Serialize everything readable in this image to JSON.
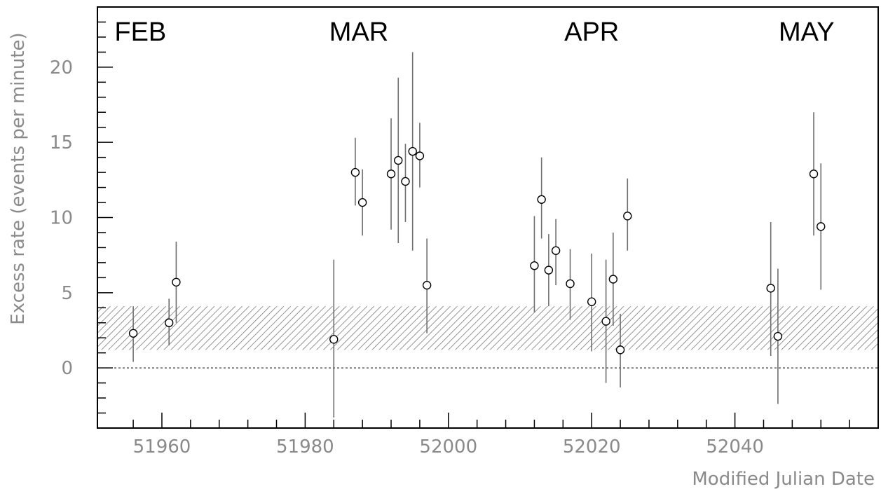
{
  "chart_data": {
    "type": "scatter",
    "title": "",
    "xlabel": "Modified Julian Date",
    "ylabel": "Excess rate (events per minute)",
    "xlim": [
      51951,
      52060
    ],
    "ylim": [
      -4,
      24
    ],
    "x_ticks": [
      51960,
      51980,
      52000,
      52020,
      52040
    ],
    "x_tick_labels": [
      "51960",
      "51980",
      "52000",
      "52020",
      "52040"
    ],
    "y_ticks": [
      0,
      5,
      10,
      15,
      20
    ],
    "y_tick_labels": [
      "0",
      "5",
      "10",
      "15",
      "20"
    ],
    "month_labels": [
      {
        "text": "FEB",
        "x": 51957
      },
      {
        "text": "MAR",
        "x": 51987.5
      },
      {
        "text": "APR",
        "x": 52020
      },
      {
        "text": "MAY",
        "x": 52050
      }
    ],
    "band": {
      "low": 1.2,
      "high": 4.1,
      "style": "hatched"
    },
    "reference_line": {
      "y": 0,
      "style": "dotted"
    },
    "grid": false,
    "points": [
      {
        "x": 51956.0,
        "y": 2.3,
        "err_low": 0.4,
        "err_high": 4.1
      },
      {
        "x": 51961.0,
        "y": 3.0,
        "err_low": 1.5,
        "err_high": 4.6
      },
      {
        "x": 51962.0,
        "y": 5.7,
        "err_low": 3.0,
        "err_high": 8.4
      },
      {
        "x": 51984.0,
        "y": 1.9,
        "err_low": -3.3,
        "err_high": 7.2
      },
      {
        "x": 51987.0,
        "y": 13.0,
        "err_low": 10.8,
        "err_high": 15.3
      },
      {
        "x": 51988.0,
        "y": 11.0,
        "err_low": 8.8,
        "err_high": 13.2
      },
      {
        "x": 51992.0,
        "y": 12.9,
        "err_low": 9.2,
        "err_high": 16.6
      },
      {
        "x": 51993.0,
        "y": 13.8,
        "err_low": 8.3,
        "err_high": 19.3
      },
      {
        "x": 51994.0,
        "y": 12.4,
        "err_low": 9.7,
        "err_high": 14.9
      },
      {
        "x": 51995.0,
        "y": 14.4,
        "err_low": 7.8,
        "err_high": 21.0
      },
      {
        "x": 51996.0,
        "y": 14.1,
        "err_low": 12.0,
        "err_high": 16.3
      },
      {
        "x": 51997.0,
        "y": 5.5,
        "err_low": 2.3,
        "err_high": 8.6
      },
      {
        "x": 52012.0,
        "y": 6.8,
        "err_low": 3.7,
        "err_high": 10.1
      },
      {
        "x": 52013.0,
        "y": 11.2,
        "err_low": 8.6,
        "err_high": 14.0
      },
      {
        "x": 52014.0,
        "y": 6.5,
        "err_low": 4.1,
        "err_high": 8.9
      },
      {
        "x": 52015.0,
        "y": 7.8,
        "err_low": 5.5,
        "err_high": 9.9
      },
      {
        "x": 52017.0,
        "y": 5.6,
        "err_low": 3.2,
        "err_high": 7.9
      },
      {
        "x": 52020.0,
        "y": 4.4,
        "err_low": 1.1,
        "err_high": 7.6
      },
      {
        "x": 52022.0,
        "y": 3.1,
        "err_low": -1.0,
        "err_high": 7.2
      },
      {
        "x": 52023.0,
        "y": 5.9,
        "err_low": 2.8,
        "err_high": 9.0
      },
      {
        "x": 52024.0,
        "y": 1.2,
        "err_low": -1.3,
        "err_high": 3.6
      },
      {
        "x": 52025.0,
        "y": 10.1,
        "err_low": 7.8,
        "err_high": 12.6
      },
      {
        "x": 52045.0,
        "y": 5.3,
        "err_low": 0.8,
        "err_high": 9.7
      },
      {
        "x": 52046.0,
        "y": 2.1,
        "err_low": -2.4,
        "err_high": 6.6
      },
      {
        "x": 52051.0,
        "y": 12.9,
        "err_low": 8.8,
        "err_high": 17.0
      },
      {
        "x": 52052.0,
        "y": 9.4,
        "err_low": 5.2,
        "err_high": 13.6
      }
    ],
    "colors": {
      "axis": "#000000",
      "tick_text": "#8a8a8a",
      "marker": "#000000",
      "error_bar": "#6e6e6e",
      "hatch": "#7a7a7a"
    }
  }
}
